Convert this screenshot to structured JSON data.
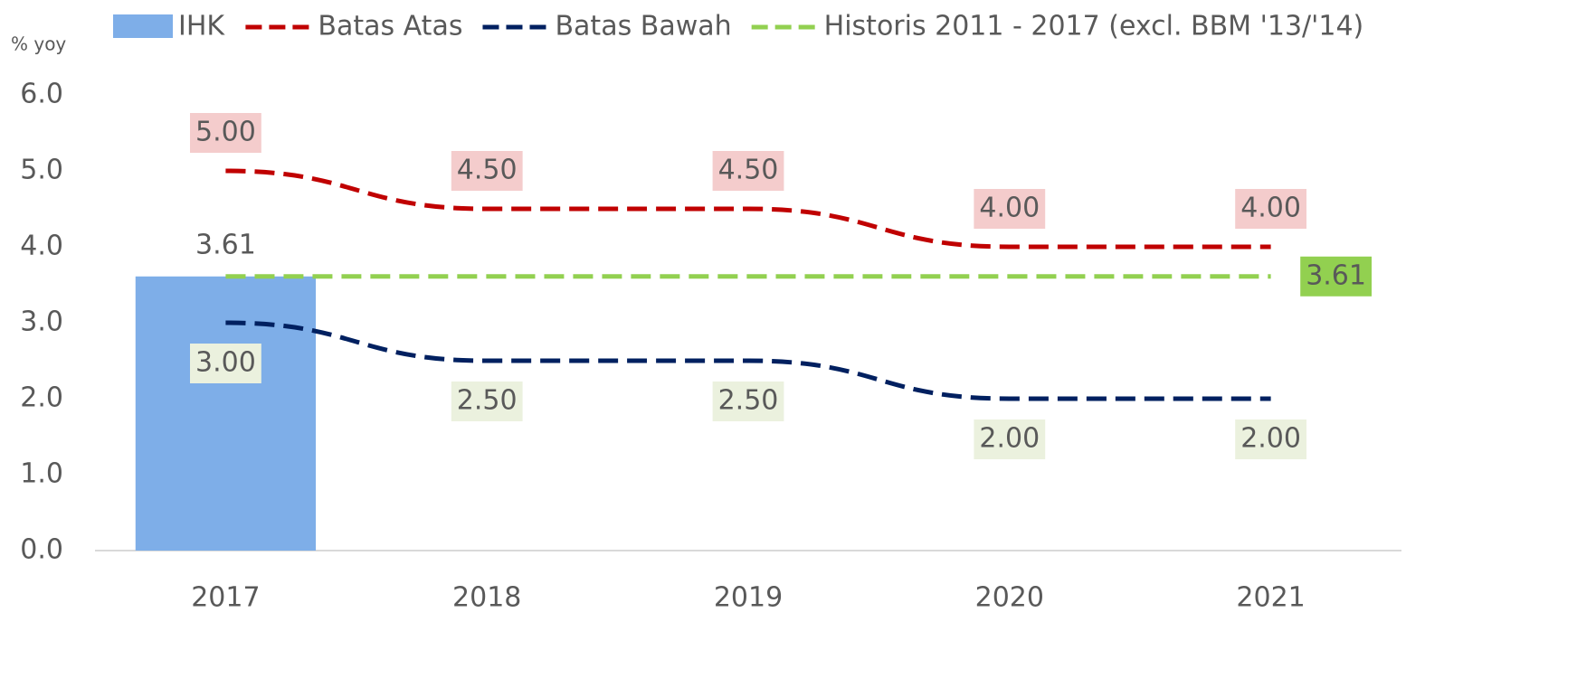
{
  "chart_data": {
    "type": "bar",
    "y_axis_label": "% yoy",
    "categories": [
      "2017",
      "2018",
      "2019",
      "2020",
      "2021"
    ],
    "ylim": [
      0,
      6
    ],
    "yticks": [
      {
        "value": 0,
        "label": "0.0"
      },
      {
        "value": 1,
        "label": "1.0"
      },
      {
        "value": 2,
        "label": "2.0"
      },
      {
        "value": 3,
        "label": "3.0"
      },
      {
        "value": 4,
        "label": "4.0"
      },
      {
        "value": 5,
        "label": "5.0"
      },
      {
        "value": 6,
        "label": "6.0"
      }
    ],
    "grid": false,
    "legend": "top",
    "series": [
      {
        "name": "IHK",
        "type": "bar",
        "color": "#7eaee8",
        "values": [
          3.61,
          null,
          null,
          null,
          null
        ]
      },
      {
        "name": "Batas Atas",
        "type": "line",
        "color": "#c00000",
        "label_box": "#f4cccc",
        "values": [
          5,
          4.5,
          4.5,
          4,
          4
        ],
        "value_labels": [
          "5.00",
          "4.50",
          "4.50",
          "4.00",
          "4.00"
        ]
      },
      {
        "name": "Batas Bawah",
        "type": "line",
        "color": "#002060",
        "label_box": "#ebf1de",
        "values": [
          3,
          2.5,
          2.5,
          2,
          2
        ],
        "value_labels": [
          "3.00",
          "2.50",
          "2.50",
          "2.00",
          "2.00"
        ]
      },
      {
        "name": "Historis 2011 - 2017 (excl. BBM '13/'14)",
        "type": "line",
        "color": "#92d050",
        "label_box": "#92d050",
        "values": [
          3.61,
          3.61,
          3.61,
          3.61,
          3.61
        ],
        "value_labels": [
          null,
          null,
          null,
          null,
          "3.61"
        ]
      }
    ]
  }
}
